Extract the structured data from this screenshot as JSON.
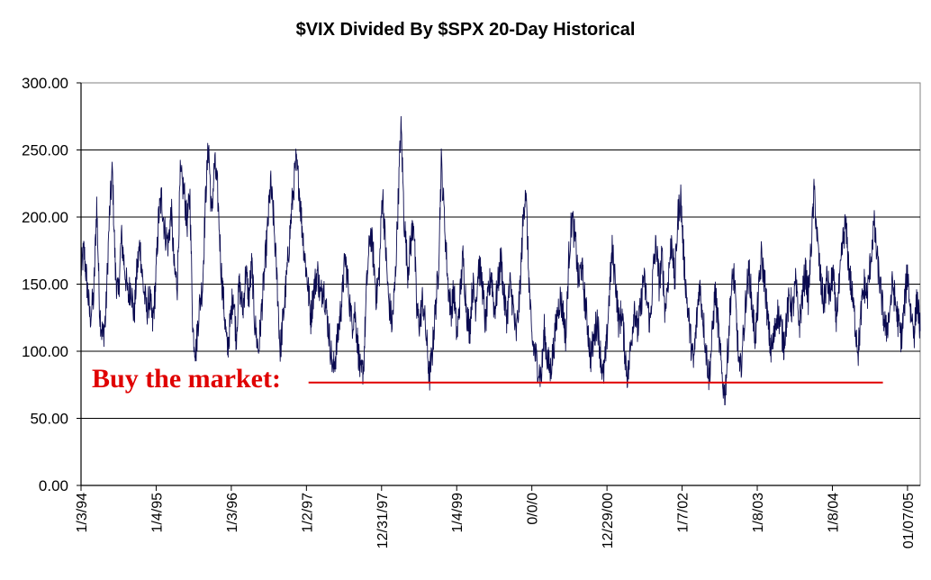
{
  "chart_data": {
    "type": "line",
    "title": "$VIX Divided By $SPX 20-Day Historical",
    "xlabel": "",
    "ylabel": "",
    "ylim": [
      0,
      300
    ],
    "y_ticks": [
      "0.00",
      "50.00",
      "100.00",
      "150.00",
      "200.00",
      "250.00",
      "300.00"
    ],
    "x_tick_labels": [
      "1/3/94",
      "1/4/95",
      "1/3/96",
      "1/2/97",
      "12/31/97",
      "1/4/99",
      "0/0/0",
      "12/29/00",
      "1/7/02",
      "1/8/03",
      "1/8/04",
      "01/07/05"
    ],
    "grid": "horizontal",
    "legend": "none",
    "line_color": "#0a0a50",
    "annotation_color": "#e00000",
    "x_start_year": 1994.0,
    "x_end_year": 2005.25,
    "series": [
      {
        "values_by_year": [
          [
            1994.0,
            160
          ],
          [
            1994.04,
            175
          ],
          [
            1994.08,
            150
          ],
          [
            1994.12,
            125
          ],
          [
            1994.17,
            140
          ],
          [
            1994.21,
            210
          ],
          [
            1994.25,
            130
          ],
          [
            1994.29,
            110
          ],
          [
            1994.33,
            125
          ],
          [
            1994.38,
            200
          ],
          [
            1994.42,
            235
          ],
          [
            1994.46,
            160
          ],
          [
            1994.5,
            140
          ],
          [
            1994.54,
            185
          ],
          [
            1994.58,
            165
          ],
          [
            1994.63,
            140
          ],
          [
            1994.67,
            150
          ],
          [
            1994.71,
            125
          ],
          [
            1994.75,
            160
          ],
          [
            1994.79,
            180
          ],
          [
            1994.83,
            150
          ],
          [
            1994.88,
            130
          ],
          [
            1994.92,
            140
          ],
          [
            1994.96,
            120
          ],
          [
            1995.0,
            150
          ],
          [
            1995.04,
            200
          ],
          [
            1995.08,
            215
          ],
          [
            1995.12,
            190
          ],
          [
            1995.17,
            180
          ],
          [
            1995.21,
            205
          ],
          [
            1995.25,
            160
          ],
          [
            1995.29,
            150
          ],
          [
            1995.33,
            230
          ],
          [
            1995.38,
            220
          ],
          [
            1995.42,
            195
          ],
          [
            1995.46,
            215
          ],
          [
            1995.5,
            115
          ],
          [
            1995.54,
            100
          ],
          [
            1995.58,
            130
          ],
          [
            1995.63,
            150
          ],
          [
            1995.67,
            215
          ],
          [
            1995.71,
            255
          ],
          [
            1995.75,
            200
          ],
          [
            1995.79,
            240
          ],
          [
            1995.83,
            220
          ],
          [
            1995.88,
            160
          ],
          [
            1995.92,
            130
          ],
          [
            1995.96,
            100
          ],
          [
            1996.0,
            120
          ],
          [
            1996.04,
            145
          ],
          [
            1996.08,
            110
          ],
          [
            1996.12,
            150
          ],
          [
            1996.17,
            130
          ],
          [
            1996.21,
            160
          ],
          [
            1996.25,
            140
          ],
          [
            1996.29,
            165
          ],
          [
            1996.33,
            120
          ],
          [
            1996.38,
            100
          ],
          [
            1996.42,
            130
          ],
          [
            1996.46,
            160
          ],
          [
            1996.5,
            190
          ],
          [
            1996.54,
            225
          ],
          [
            1996.58,
            200
          ],
          [
            1996.63,
            150
          ],
          [
            1996.67,
            100
          ],
          [
            1996.71,
            125
          ],
          [
            1996.75,
            150
          ],
          [
            1996.79,
            180
          ],
          [
            1996.83,
            210
          ],
          [
            1996.88,
            240
          ],
          [
            1996.92,
            225
          ],
          [
            1996.96,
            195
          ],
          [
            1997.0,
            170
          ],
          [
            1997.04,
            150
          ],
          [
            1997.08,
            125
          ],
          [
            1997.12,
            145
          ],
          [
            1997.17,
            160
          ],
          [
            1997.21,
            140
          ],
          [
            1997.25,
            150
          ],
          [
            1997.29,
            130
          ],
          [
            1997.33,
            110
          ],
          [
            1997.38,
            85
          ],
          [
            1997.42,
            100
          ],
          [
            1997.46,
            120
          ],
          [
            1997.5,
            140
          ],
          [
            1997.54,
            170
          ],
          [
            1997.58,
            150
          ],
          [
            1997.63,
            120
          ],
          [
            1997.67,
            130
          ],
          [
            1997.71,
            105
          ],
          [
            1997.75,
            80
          ],
          [
            1997.79,
            90
          ],
          [
            1997.83,
            150
          ],
          [
            1997.88,
            190
          ],
          [
            1997.92,
            170
          ],
          [
            1997.96,
            140
          ],
          [
            1998.0,
            160
          ],
          [
            1998.04,
            220
          ],
          [
            1998.08,
            180
          ],
          [
            1998.12,
            140
          ],
          [
            1998.17,
            120
          ],
          [
            1998.21,
            150
          ],
          [
            1998.25,
            210
          ],
          [
            1998.29,
            270
          ],
          [
            1998.33,
            200
          ],
          [
            1998.38,
            160
          ],
          [
            1998.42,
            180
          ],
          [
            1998.46,
            200
          ],
          [
            1998.5,
            130
          ],
          [
            1998.54,
            120
          ],
          [
            1998.58,
            140
          ],
          [
            1998.63,
            110
          ],
          [
            1998.67,
            80
          ],
          [
            1998.71,
            100
          ],
          [
            1998.75,
            130
          ],
          [
            1998.79,
            160
          ],
          [
            1998.83,
            240
          ],
          [
            1998.88,
            190
          ],
          [
            1998.92,
            150
          ],
          [
            1998.96,
            130
          ],
          [
            1999.0,
            145
          ],
          [
            1999.04,
            110
          ],
          [
            1999.08,
            140
          ],
          [
            1999.12,
            170
          ],
          [
            1999.17,
            130
          ],
          [
            1999.21,
            115
          ],
          [
            1999.25,
            150
          ],
          [
            1999.29,
            135
          ],
          [
            1999.33,
            165
          ],
          [
            1999.38,
            150
          ],
          [
            1999.42,
            120
          ],
          [
            1999.46,
            140
          ],
          [
            1999.5,
            160
          ],
          [
            1999.54,
            130
          ],
          [
            1999.58,
            145
          ],
          [
            1999.63,
            170
          ],
          [
            1999.67,
            140
          ],
          [
            1999.71,
            125
          ],
          [
            1999.75,
            150
          ],
          [
            1999.79,
            135
          ],
          [
            1999.83,
            110
          ],
          [
            1999.88,
            140
          ],
          [
            1999.92,
            190
          ],
          [
            1999.96,
            225
          ],
          [
            2000.0,
            160
          ],
          [
            2000.04,
            110
          ],
          [
            2000.08,
            100
          ],
          [
            2000.12,
            90
          ],
          [
            2000.17,
            80
          ],
          [
            2000.21,
            115
          ],
          [
            2000.25,
            95
          ],
          [
            2000.29,
            85
          ],
          [
            2000.33,
            100
          ],
          [
            2000.38,
            125
          ],
          [
            2000.42,
            140
          ],
          [
            2000.46,
            130
          ],
          [
            2000.5,
            110
          ],
          [
            2000.54,
            170
          ],
          [
            2000.58,
            200
          ],
          [
            2000.63,
            180
          ],
          [
            2000.67,
            150
          ],
          [
            2000.71,
            165
          ],
          [
            2000.75,
            140
          ],
          [
            2000.79,
            120
          ],
          [
            2000.83,
            95
          ],
          [
            2000.88,
            110
          ],
          [
            2000.92,
            125
          ],
          [
            2000.96,
            100
          ],
          [
            2001.0,
            80
          ],
          [
            2001.04,
            100
          ],
          [
            2001.08,
            140
          ],
          [
            2001.12,
            175
          ],
          [
            2001.17,
            150
          ],
          [
            2001.21,
            120
          ],
          [
            2001.25,
            130
          ],
          [
            2001.29,
            100
          ],
          [
            2001.33,
            80
          ],
          [
            2001.38,
            110
          ],
          [
            2001.42,
            135
          ],
          [
            2001.46,
            115
          ],
          [
            2001.5,
            130
          ],
          [
            2001.54,
            155
          ],
          [
            2001.58,
            140
          ],
          [
            2001.63,
            120
          ],
          [
            2001.67,
            160
          ],
          [
            2001.71,
            180
          ],
          [
            2001.75,
            150
          ],
          [
            2001.79,
            170
          ],
          [
            2001.83,
            130
          ],
          [
            2001.88,
            160
          ],
          [
            2001.92,
            185
          ],
          [
            2001.96,
            150
          ],
          [
            2002.0,
            200
          ],
          [
            2002.04,
            215
          ],
          [
            2002.08,
            170
          ],
          [
            2002.12,
            140
          ],
          [
            2002.17,
            110
          ],
          [
            2002.21,
            90
          ],
          [
            2002.25,
            120
          ],
          [
            2002.29,
            150
          ],
          [
            2002.33,
            130
          ],
          [
            2002.38,
            100
          ],
          [
            2002.42,
            80
          ],
          [
            2002.46,
            110
          ],
          [
            2002.5,
            145
          ],
          [
            2002.54,
            120
          ],
          [
            2002.58,
            90
          ],
          [
            2002.63,
            65
          ],
          [
            2002.67,
            100
          ],
          [
            2002.71,
            140
          ],
          [
            2002.75,
            160
          ],
          [
            2002.79,
            120
          ],
          [
            2002.83,
            80
          ],
          [
            2002.88,
            110
          ],
          [
            2002.92,
            145
          ],
          [
            2002.96,
            160
          ],
          [
            2003.0,
            130
          ],
          [
            2003.04,
            110
          ],
          [
            2003.08,
            140
          ],
          [
            2003.12,
            170
          ],
          [
            2003.17,
            150
          ],
          [
            2003.21,
            120
          ],
          [
            2003.25,
            100
          ],
          [
            2003.29,
            110
          ],
          [
            2003.33,
            130
          ],
          [
            2003.38,
            120
          ],
          [
            2003.42,
            105
          ],
          [
            2003.46,
            125
          ],
          [
            2003.5,
            140
          ],
          [
            2003.54,
            130
          ],
          [
            2003.58,
            150
          ],
          [
            2003.63,
            120
          ],
          [
            2003.67,
            140
          ],
          [
            2003.71,
            160
          ],
          [
            2003.75,
            140
          ],
          [
            2003.79,
            180
          ],
          [
            2003.83,
            220
          ],
          [
            2003.88,
            175
          ],
          [
            2003.92,
            150
          ],
          [
            2003.96,
            135
          ],
          [
            2004.0,
            155
          ],
          [
            2004.04,
            140
          ],
          [
            2004.08,
            160
          ],
          [
            2004.12,
            125
          ],
          [
            2004.17,
            150
          ],
          [
            2004.21,
            180
          ],
          [
            2004.25,
            195
          ],
          [
            2004.29,
            165
          ],
          [
            2004.33,
            145
          ],
          [
            2004.38,
            120
          ],
          [
            2004.42,
            100
          ],
          [
            2004.46,
            130
          ],
          [
            2004.5,
            150
          ],
          [
            2004.54,
            140
          ],
          [
            2004.58,
            165
          ],
          [
            2004.63,
            195
          ],
          [
            2004.67,
            170
          ],
          [
            2004.71,
            150
          ],
          [
            2004.75,
            130
          ],
          [
            2004.79,
            115
          ],
          [
            2004.83,
            125
          ],
          [
            2004.88,
            150
          ],
          [
            2004.92,
            135
          ],
          [
            2004.96,
            120
          ],
          [
            2005.0,
            110
          ],
          [
            2005.04,
            135
          ],
          [
            2005.08,
            160
          ],
          [
            2005.12,
            130
          ],
          [
            2005.17,
            115
          ],
          [
            2005.21,
            140
          ],
          [
            2005.25,
            115
          ]
        ]
      }
    ],
    "annotations": [
      {
        "text": "Buy the market:",
        "y": 78,
        "line_from_year": 1997.05,
        "line_to_year": 2004.75
      }
    ]
  }
}
